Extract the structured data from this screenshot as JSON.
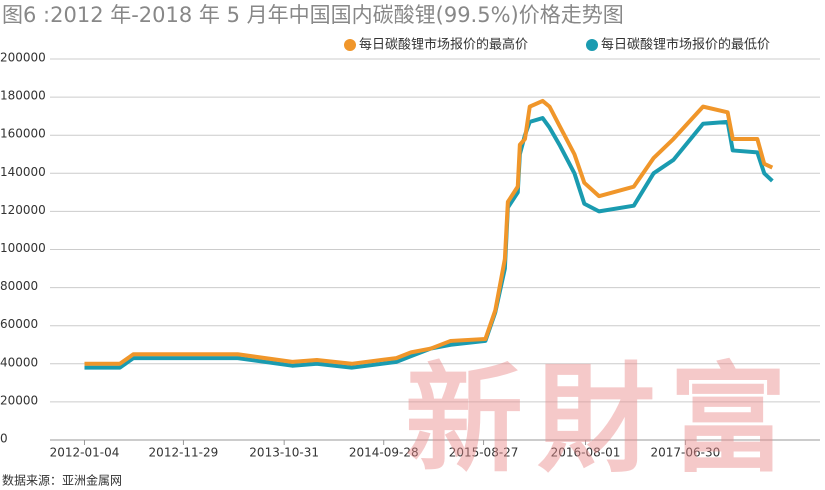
{
  "chart_data": {
    "type": "line",
    "title": "图6 :2012 年-2018 年 5 月年中国国内碳酸锂(99.5%)价格走势图",
    "source": "数据来源：亚洲金属网",
    "watermark": "新財富",
    "x": [
      "2012-01-04",
      "2012-05-01",
      "2012-06-15",
      "2013-05-29",
      "2013-11-27",
      "2014-02-17",
      "2014-06-13",
      "2014-11-09",
      "2014-12-28",
      "2015-03-04",
      "2015-05-09",
      "2015-09-02",
      "2015-10-05",
      "2015-11-06",
      "2015-11-16",
      "2015-12-19",
      "2015-12-26",
      "2016-01-12",
      "2016-01-28",
      "2016-03-11",
      "2016-04-03",
      "2016-05-06",
      "2016-06-25",
      "2016-07-28",
      "2016-09-15",
      "2017-01-09",
      "2017-03-16",
      "2017-05-21",
      "2017-08-28",
      "2017-11-18",
      "2017-12-05",
      "2018-02-25",
      "2018-03-20",
      "2018-04-16"
    ],
    "series": [
      {
        "name": "每日碳酸锂市场报价的最低价",
        "color": "#1a9bb0",
        "values": [
          38000,
          38000,
          43000,
          43000,
          39000,
          40000,
          38000,
          41000,
          44000,
          48000,
          50000,
          52000,
          67000,
          90000,
          122000,
          130000,
          150000,
          160000,
          167000,
          169000,
          164000,
          155000,
          140000,
          124000,
          120000,
          123000,
          140000,
          147000,
          166000,
          167000,
          152000,
          151000,
          140000,
          136000
        ]
      },
      {
        "name": "每日碳酸锂市场报价的最高价",
        "color": "#f0962a",
        "values": [
          40000,
          40000,
          45000,
          45000,
          41000,
          42000,
          40000,
          43000,
          46000,
          48000,
          52000,
          53000,
          68000,
          95000,
          125000,
          133000,
          155000,
          158000,
          175000,
          178000,
          175000,
          165000,
          150000,
          135000,
          128000,
          133000,
          148000,
          158000,
          175000,
          172000,
          158000,
          158000,
          145000,
          143000
        ]
      }
    ],
    "xlim": [
      "2011-09-11",
      "2018-09-22"
    ],
    "xticks": [
      "2012-01-04",
      "2012-11-29",
      "2013-10-31",
      "2014-09-28",
      "2015-08-27",
      "2016-08-01",
      "2017-06-30"
    ],
    "ylim": [
      0,
      200000
    ],
    "yticks": [
      0,
      20000,
      40000,
      60000,
      80000,
      100000,
      120000,
      140000,
      160000,
      180000,
      200000
    ],
    "grid": true
  }
}
